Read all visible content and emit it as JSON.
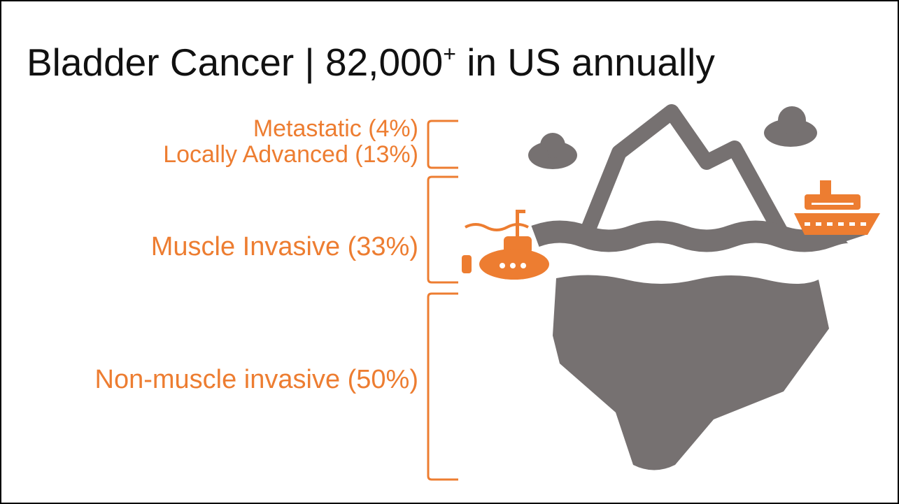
{
  "header": {
    "title": "Bladder Cancer | 82,000",
    "title_superscript": "+",
    "title_rest": " in US annually"
  },
  "tiers": [
    {
      "label": "Metastatic (4%)"
    },
    {
      "label": "Locally Advanced (13%)"
    },
    {
      "label": "Muscle Invasive (33%)"
    },
    {
      "label": "Non-muscle invasive (50%)"
    }
  ]
}
